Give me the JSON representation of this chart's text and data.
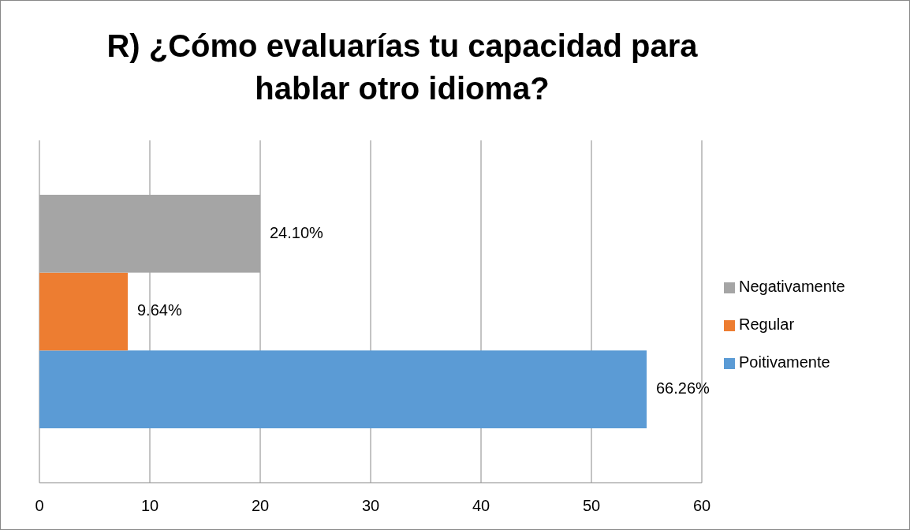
{
  "chart_data": {
    "type": "bar",
    "orientation": "horizontal",
    "title": "R) ¿Cómo evaluarías tu capacidad para hablar otro idioma?",
    "categories": [
      null
    ],
    "series": [
      {
        "name": "Poitivamente",
        "color": "#5b9bd5",
        "values": [
          55
        ]
      },
      {
        "name": "Regular",
        "color": "#ed7d31",
        "values": [
          8
        ]
      },
      {
        "name": "Negativamente",
        "color": "#a5a5a5",
        "values": [
          20
        ]
      }
    ],
    "annotations": [
      {
        "text": "66.26%",
        "x": 55
      },
      {
        "text": "9.64%",
        "x": 8
      },
      {
        "text": "24.10%",
        "x": 20
      }
    ],
    "xlim": [
      0,
      60
    ],
    "xticks": [
      0,
      10,
      20,
      30,
      40,
      50,
      60
    ],
    "grid": "x",
    "legend": "right"
  }
}
